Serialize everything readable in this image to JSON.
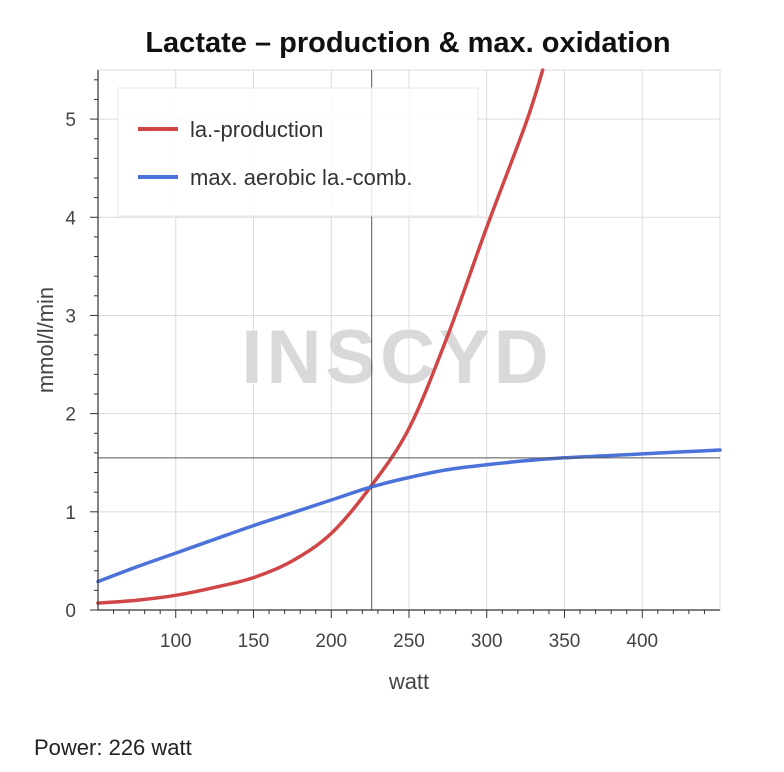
{
  "chart_data": {
    "type": "line",
    "title": "Lactate – production & max. oxidation",
    "xlabel": "watt",
    "ylabel": "mmol/l/min",
    "xlim": [
      50,
      450
    ],
    "ylim": [
      0,
      5.5
    ],
    "xticks": [
      100,
      150,
      200,
      250,
      300,
      350,
      400
    ],
    "yticks": [
      0,
      1,
      2,
      3,
      4,
      5
    ],
    "grid": true,
    "legend_position": "top-left",
    "watermark": "INSCYD",
    "series": [
      {
        "name": "la.-production",
        "color": "#d04545",
        "x": [
          50,
          75,
          100,
          125,
          150,
          175,
          200,
          225,
          250,
          275,
          300,
          325,
          336
        ],
        "y": [
          0.07,
          0.1,
          0.15,
          0.23,
          0.33,
          0.5,
          0.78,
          1.25,
          1.85,
          2.8,
          3.9,
          4.95,
          5.5
        ]
      },
      {
        "name": "max. aerobic la.-comb.",
        "color": "#4a72d9",
        "x": [
          50,
          75,
          100,
          125,
          150,
          175,
          200,
          225,
          250,
          275,
          300,
          325,
          350,
          375,
          400,
          425,
          450
        ],
        "y": [
          0.29,
          0.44,
          0.58,
          0.72,
          0.86,
          0.99,
          1.12,
          1.25,
          1.35,
          1.43,
          1.48,
          1.52,
          1.55,
          1.57,
          1.59,
          1.61,
          1.63
        ]
      }
    ],
    "crosshair": {
      "x": 226,
      "y": 1.55
    }
  },
  "readout": {
    "text": "Power: 226 watt"
  }
}
